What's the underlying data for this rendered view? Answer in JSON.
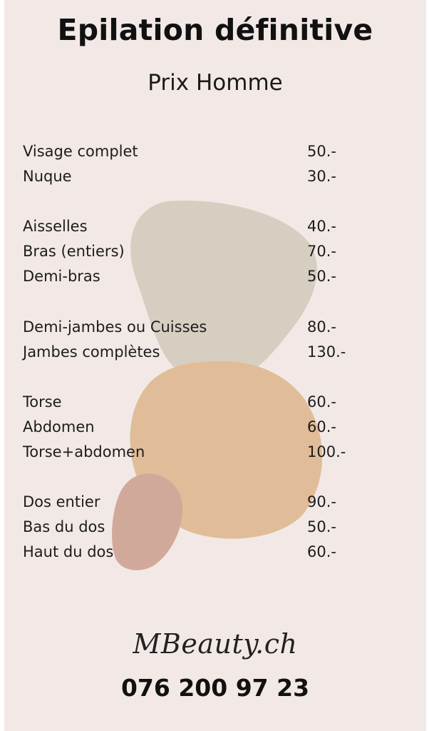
{
  "header": {
    "title": "Epilation définitive",
    "subtitle": "Prix Homme"
  },
  "prices": [
    {
      "label": "Visage complet",
      "price": "50.-"
    },
    {
      "label": "Nuque",
      "price": "30.-"
    },
    {
      "label": "Aisselles",
      "price": "40.-"
    },
    {
      "label": "Bras (entiers)",
      "price": "70.-"
    },
    {
      "label": "Demi-bras",
      "price": "50.-"
    },
    {
      "label": "Demi-jambes ou Cuisses",
      "price": "80.-"
    },
    {
      "label": "Jambes complètes",
      "price": "130.-"
    },
    {
      "label": "Torse",
      "price": "60.-"
    },
    {
      "label": "Abdomen",
      "price": "60.-"
    },
    {
      "label": "Torse+abdomen",
      "price": "100.-"
    },
    {
      "label": "Dos entier",
      "price": "90.-"
    },
    {
      "label": "Bas du dos",
      "price": "50.-"
    },
    {
      "label": "Haut du dos",
      "price": "60.-"
    }
  ],
  "footer": {
    "logo_text": "MBeauty.ch",
    "phone": "076 200 97 23"
  },
  "colors": {
    "background": "#f2e9e6",
    "blob_sage": "#d6cfc1",
    "blob_peach": "#e0bd98",
    "blob_rose": "#d1a99a"
  }
}
